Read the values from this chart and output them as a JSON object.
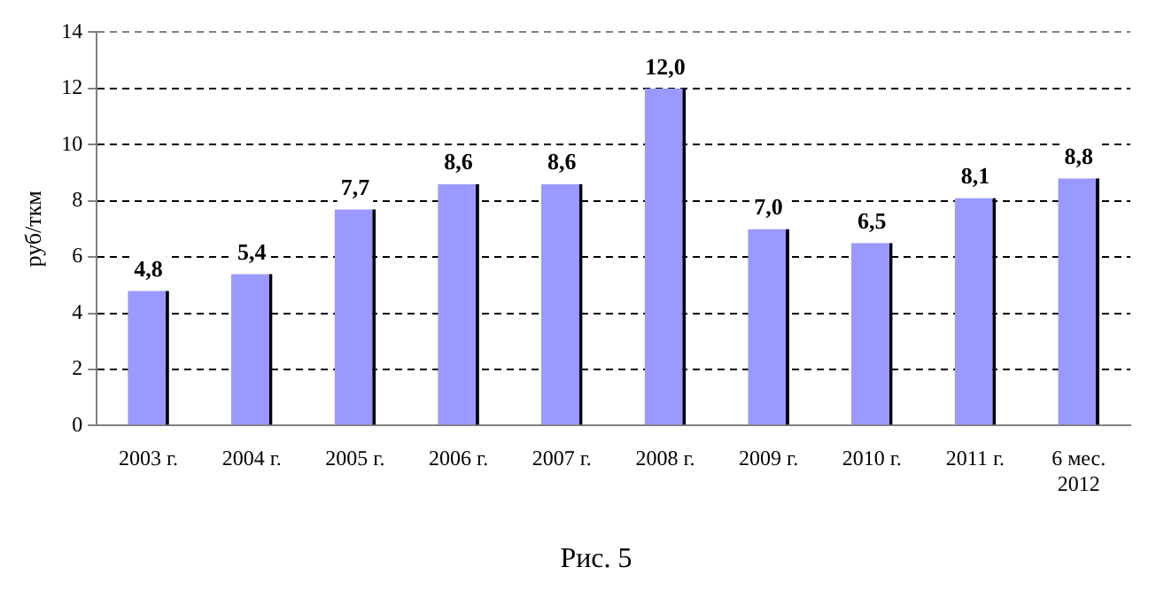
{
  "chart_data": {
    "type": "bar",
    "ylabel": "руб/ткм",
    "categories": [
      "2003 г.",
      "2004 г.",
      "2005 г.",
      "2006 г.",
      "2007 г.",
      "2008 г.",
      "2009 г.",
      "2010 г.",
      "2011 г.",
      "6 мес.\n2012"
    ],
    "values": [
      4.8,
      5.4,
      7.7,
      8.6,
      8.6,
      12.0,
      7.0,
      6.5,
      8.1,
      8.8
    ],
    "value_labels": [
      "4,8",
      "5,4",
      "7,7",
      "8,6",
      "8,6",
      "12,0",
      "7,0",
      "6,5",
      "8,1",
      "8,8"
    ],
    "color": "#9999ff",
    "ylim": [
      0,
      14
    ],
    "yticks": [
      0,
      2,
      4,
      6,
      8,
      10,
      12,
      14
    ],
    "grid": "y",
    "legend": false,
    "annotations": [
      "Рис. 5"
    ]
  }
}
